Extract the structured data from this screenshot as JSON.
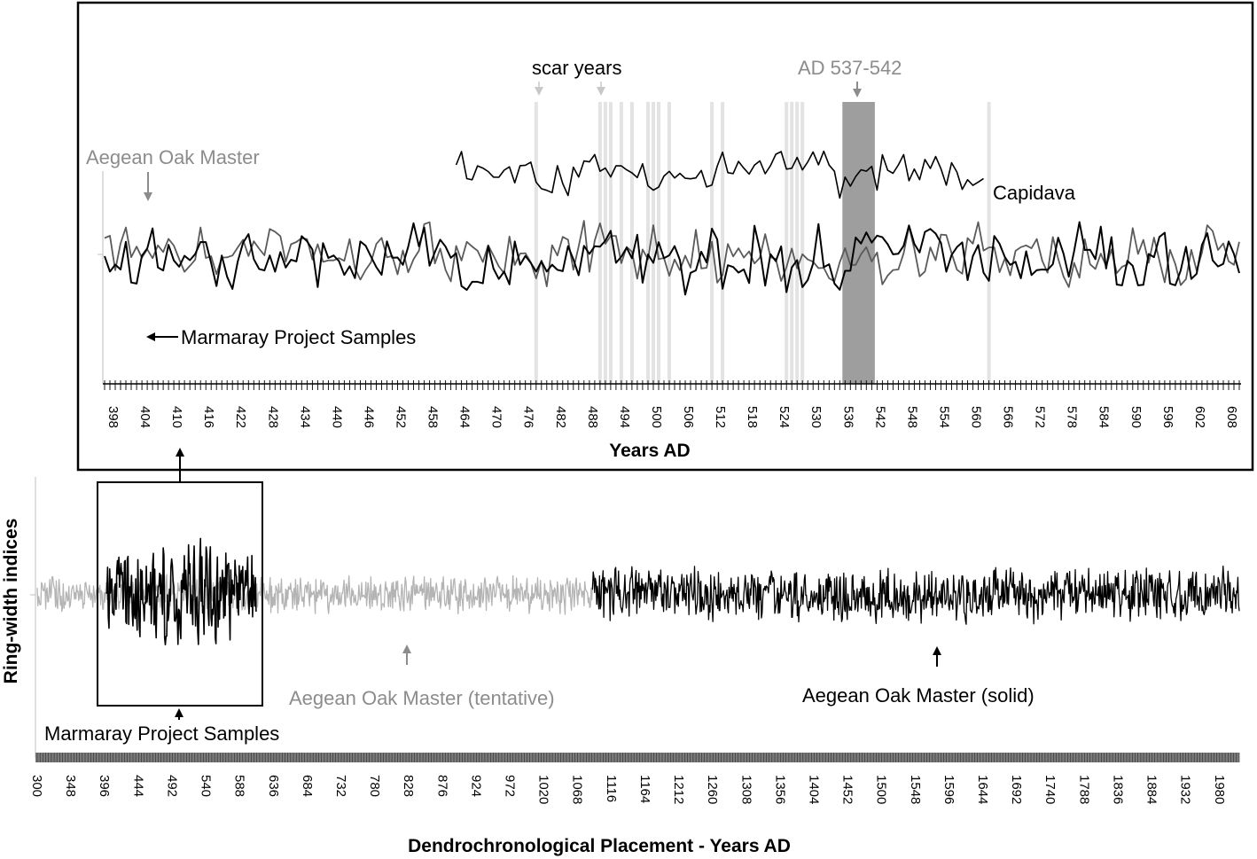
{
  "chart_data": [
    {
      "type": "line",
      "panel": "inset",
      "xlabel": "Years AD",
      "ylabel": "",
      "xlim": [
        398,
        611
      ],
      "x_ticks": [
        398,
        404,
        410,
        416,
        422,
        428,
        434,
        440,
        446,
        452,
        458,
        464,
        470,
        476,
        482,
        488,
        494,
        500,
        506,
        512,
        518,
        524,
        530,
        536,
        542,
        548,
        554,
        560,
        566,
        572,
        578,
        584,
        590,
        596,
        602,
        608
      ],
      "grid": false,
      "series": [
        {
          "name": "Marmaray Project Samples",
          "x_start": 398,
          "x_end": 611,
          "color": "#000000"
        },
        {
          "name": "Aegean Oak Master",
          "x_start": 398,
          "x_end": 611,
          "color": "#5a5a5a"
        },
        {
          "name": "Capidava",
          "x_start": 464,
          "x_end": 563,
          "color": "#000000"
        }
      ],
      "highlight_bands": {
        "scar_years": [
          479,
          491,
          492,
          493,
          495,
          497,
          500,
          501,
          502,
          504,
          512,
          514,
          526,
          527,
          528,
          529,
          564
        ],
        "ad_537_542": [
          537,
          538,
          539,
          540,
          541,
          542
        ]
      },
      "annotations": [
        {
          "text": "scar years",
          "color": "#000000"
        },
        {
          "text": "AD 537-542",
          "color": "#8c8c8c"
        },
        {
          "text": "Aegean Oak Master",
          "color": "#8c8c8c"
        },
        {
          "text": "Marmaray Project Samples",
          "color": "#000000"
        },
        {
          "text": "Capidava",
          "color": "#000000"
        }
      ]
    },
    {
      "type": "line",
      "panel": "main",
      "xlabel": "Dendrochronological Placement - Years AD",
      "ylabel": "Ring-width indices",
      "xlim": [
        300,
        2008
      ],
      "x_ticks": [
        300,
        348,
        396,
        444,
        492,
        540,
        588,
        636,
        684,
        732,
        780,
        828,
        876,
        924,
        972,
        1020,
        1068,
        1116,
        1164,
        1212,
        1260,
        1308,
        1356,
        1404,
        1452,
        1500,
        1548,
        1596,
        1644,
        1692,
        1740,
        1788,
        1836,
        1884,
        1932,
        1980
      ],
      "grid": false,
      "series": [
        {
          "name": "Aegean Oak Master (tentative)",
          "x_start": 300,
          "x_end": 1089,
          "color": "#b4b4b4"
        },
        {
          "name": "Aegean Oak Master (solid)",
          "x_start": 1089,
          "x_end": 2008,
          "color": "#000000"
        },
        {
          "name": "Marmaray Project Samples",
          "x_start": 398,
          "x_end": 611,
          "color": "#000000"
        }
      ],
      "annotations": [
        {
          "text": "Aegean Oak Master (tentative)",
          "color": "#8c8c8c"
        },
        {
          "text": "Aegean Oak Master (solid)",
          "color": "#000000"
        },
        {
          "text": "Marmaray Project Samples",
          "color": "#000000"
        }
      ]
    }
  ]
}
